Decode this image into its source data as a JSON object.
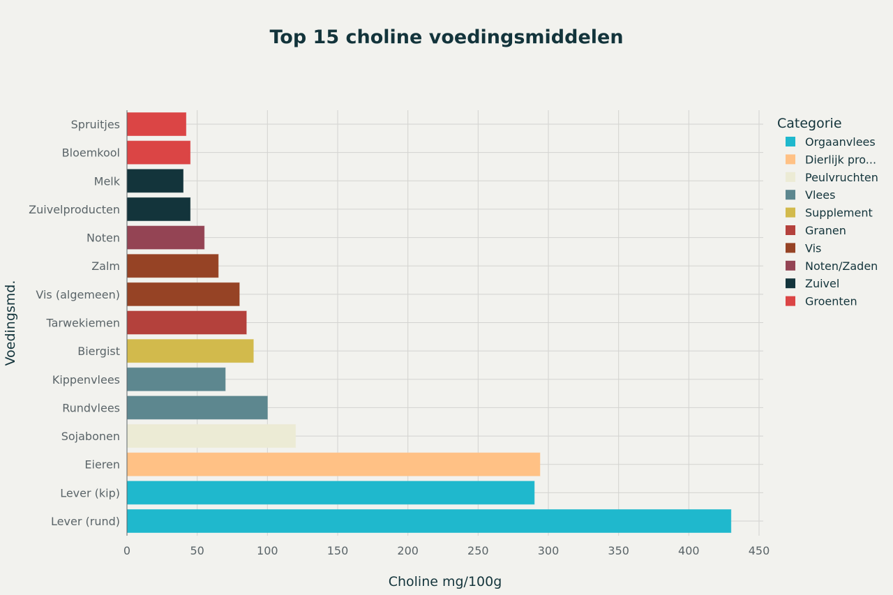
{
  "chart_data": {
    "type": "bar",
    "orientation": "horizontal",
    "title": "Top 15 choline voedingsmiddelen",
    "xlabel": "Choline mg/100g",
    "ylabel": "Voedingsmd.",
    "xlim": [
      0,
      450
    ],
    "xticks": [
      0,
      50,
      100,
      150,
      200,
      250,
      300,
      350,
      400,
      450
    ],
    "grid": true,
    "legend_position": "right",
    "legend_title": "Categorie",
    "categories_legend": [
      {
        "name": "Orgaanvlees",
        "color": "#1fb8cd"
      },
      {
        "name": "Dierlijk pro...",
        "color": "#ffc185"
      },
      {
        "name": "Peulvruchten",
        "color": "#eceBd5"
      },
      {
        "name": "Vlees",
        "color": "#5d878f"
      },
      {
        "name": "Supplement",
        "color": "#d2ba4c"
      },
      {
        "name": "Granen",
        "color": "#b4413c"
      },
      {
        "name": "Vis",
        "color": "#964325"
      },
      {
        "name": "Noten/Zaden",
        "color": "#944454"
      },
      {
        "name": "Zuivel",
        "color": "#13343b"
      },
      {
        "name": "Groenten",
        "color": "#db4545"
      }
    ],
    "bars": [
      {
        "label": "Spruitjes",
        "value": 42,
        "category": "Groenten"
      },
      {
        "label": "Bloemkool",
        "value": 45,
        "category": "Groenten"
      },
      {
        "label": "Melk",
        "value": 40,
        "category": "Zuivel"
      },
      {
        "label": "Zuivelproducten",
        "value": 45,
        "category": "Zuivel"
      },
      {
        "label": "Noten",
        "value": 55,
        "category": "Noten/Zaden"
      },
      {
        "label": "Zalm",
        "value": 65,
        "category": "Vis"
      },
      {
        "label": "Vis (algemeen)",
        "value": 80,
        "category": "Vis"
      },
      {
        "label": "Tarwekiemen",
        "value": 85,
        "category": "Granen"
      },
      {
        "label": "Biergist",
        "value": 90,
        "category": "Supplement"
      },
      {
        "label": "Kippenvlees",
        "value": 70,
        "category": "Vlees"
      },
      {
        "label": "Rundvlees",
        "value": 100,
        "category": "Vlees"
      },
      {
        "label": "Sojabonen",
        "value": 120,
        "category": "Peulvruchten"
      },
      {
        "label": "Eieren",
        "value": 294,
        "category": "Dierlijk pro..."
      },
      {
        "label": "Lever (kip)",
        "value": 290,
        "category": "Orgaanvlees"
      },
      {
        "label": "Lever (rund)",
        "value": 430,
        "category": "Orgaanvlees"
      }
    ]
  }
}
